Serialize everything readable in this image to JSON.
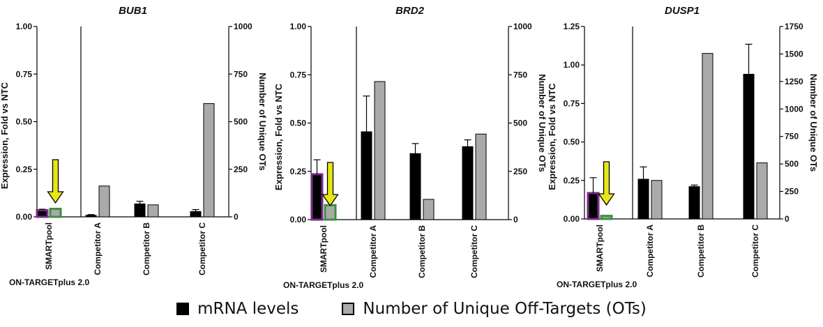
{
  "chart_data": [
    {
      "type": "bar",
      "title": "BUB1",
      "categories": [
        "SMARTpool",
        "Competitor A",
        "Competitor B",
        "Competitor C"
      ],
      "group_label": "ON-TARGETplus 2.0",
      "ylabel_left": "Expression, Fold vs NTC",
      "ylabel_right": "Number of Unique OTs",
      "ylim_left": [
        0,
        1.0
      ],
      "ylim_right": [
        0,
        1000
      ],
      "yticks_left": [
        "0.00",
        "0.25",
        "0.50",
        "0.75",
        "1.00"
      ],
      "yticks_right": [
        "0",
        "250",
        "500",
        "750",
        "1000"
      ],
      "series": [
        {
          "name": "mRNA levels",
          "axis": "left",
          "values": [
            0.035,
            0.008,
            0.068,
            0.028
          ],
          "errors": [
            0.005,
            0.004,
            0.014,
            0.01
          ]
        },
        {
          "name": "Number of Unique Off-Targets (OTs)",
          "axis": "right",
          "values": [
            42,
            162,
            63,
            595
          ]
        }
      ]
    },
    {
      "type": "bar",
      "title": "BRD2",
      "categories": [
        "SMARTpool",
        "Competitor A",
        "Competitor B",
        "Competitor C"
      ],
      "group_label": "ON-TARGETplus 2.0",
      "ylabel_left": "Expression, Fold vs NTC",
      "ylabel_right": "Number of Unique OTs",
      "ylim_left": [
        0,
        1.0
      ],
      "ylim_right": [
        0,
        1000
      ],
      "yticks_left": [
        "0.00",
        "0.25",
        "0.50",
        "0.75",
        "1.00"
      ],
      "yticks_right": [
        "0",
        "250",
        "500",
        "750",
        "1000"
      ],
      "series": [
        {
          "name": "mRNA levels",
          "axis": "left",
          "values": [
            0.235,
            0.455,
            0.342,
            0.378
          ],
          "errors": [
            0.075,
            0.185,
            0.052,
            0.035
          ]
        },
        {
          "name": "Number of Unique Off-Targets (OTs)",
          "axis": "right",
          "values": [
            75,
            715,
            105,
            443
          ]
        }
      ]
    },
    {
      "type": "bar",
      "title": "DUSP1",
      "categories": [
        "SMARTpool",
        "Competitor A",
        "Competitor B",
        "Competitor C"
      ],
      "group_label": "ON-TARGETplus 2.0",
      "ylabel_left": "Expression, Fold vs NTC",
      "ylabel_right": "Number of Unique OTs",
      "ylim_left": [
        0,
        1.25
      ],
      "ylim_right": [
        0,
        1750
      ],
      "yticks_left": [
        "0.00",
        "0.25",
        "0.50",
        "0.75",
        "1.00",
        "1.25"
      ],
      "yticks_right": [
        "0",
        "250",
        "500",
        "750",
        "1000",
        "1250",
        "1500",
        "1750"
      ],
      "series": [
        {
          "name": "mRNA levels",
          "axis": "left",
          "values": [
            0.168,
            0.258,
            0.21,
            0.94
          ],
          "errors": [
            0.1,
            0.08,
            0.01,
            0.195
          ]
        },
        {
          "name": "Number of Unique Off-Targets (OTs)",
          "axis": "right",
          "values": [
            28,
            350,
            1505,
            510
          ]
        }
      ]
    }
  ],
  "legend": {
    "mrna_label": "mRNA levels",
    "ots_label": "Number of Unique Off-Targets (OTs)"
  },
  "colors": {
    "mrna_fill": "#000000",
    "ots_fill": "#aaaaaa",
    "smartpool_mrna_border": "#7b2b8c",
    "smartpool_ots_border": "#3f8f3f",
    "arrow_fill": "#e6e619"
  }
}
